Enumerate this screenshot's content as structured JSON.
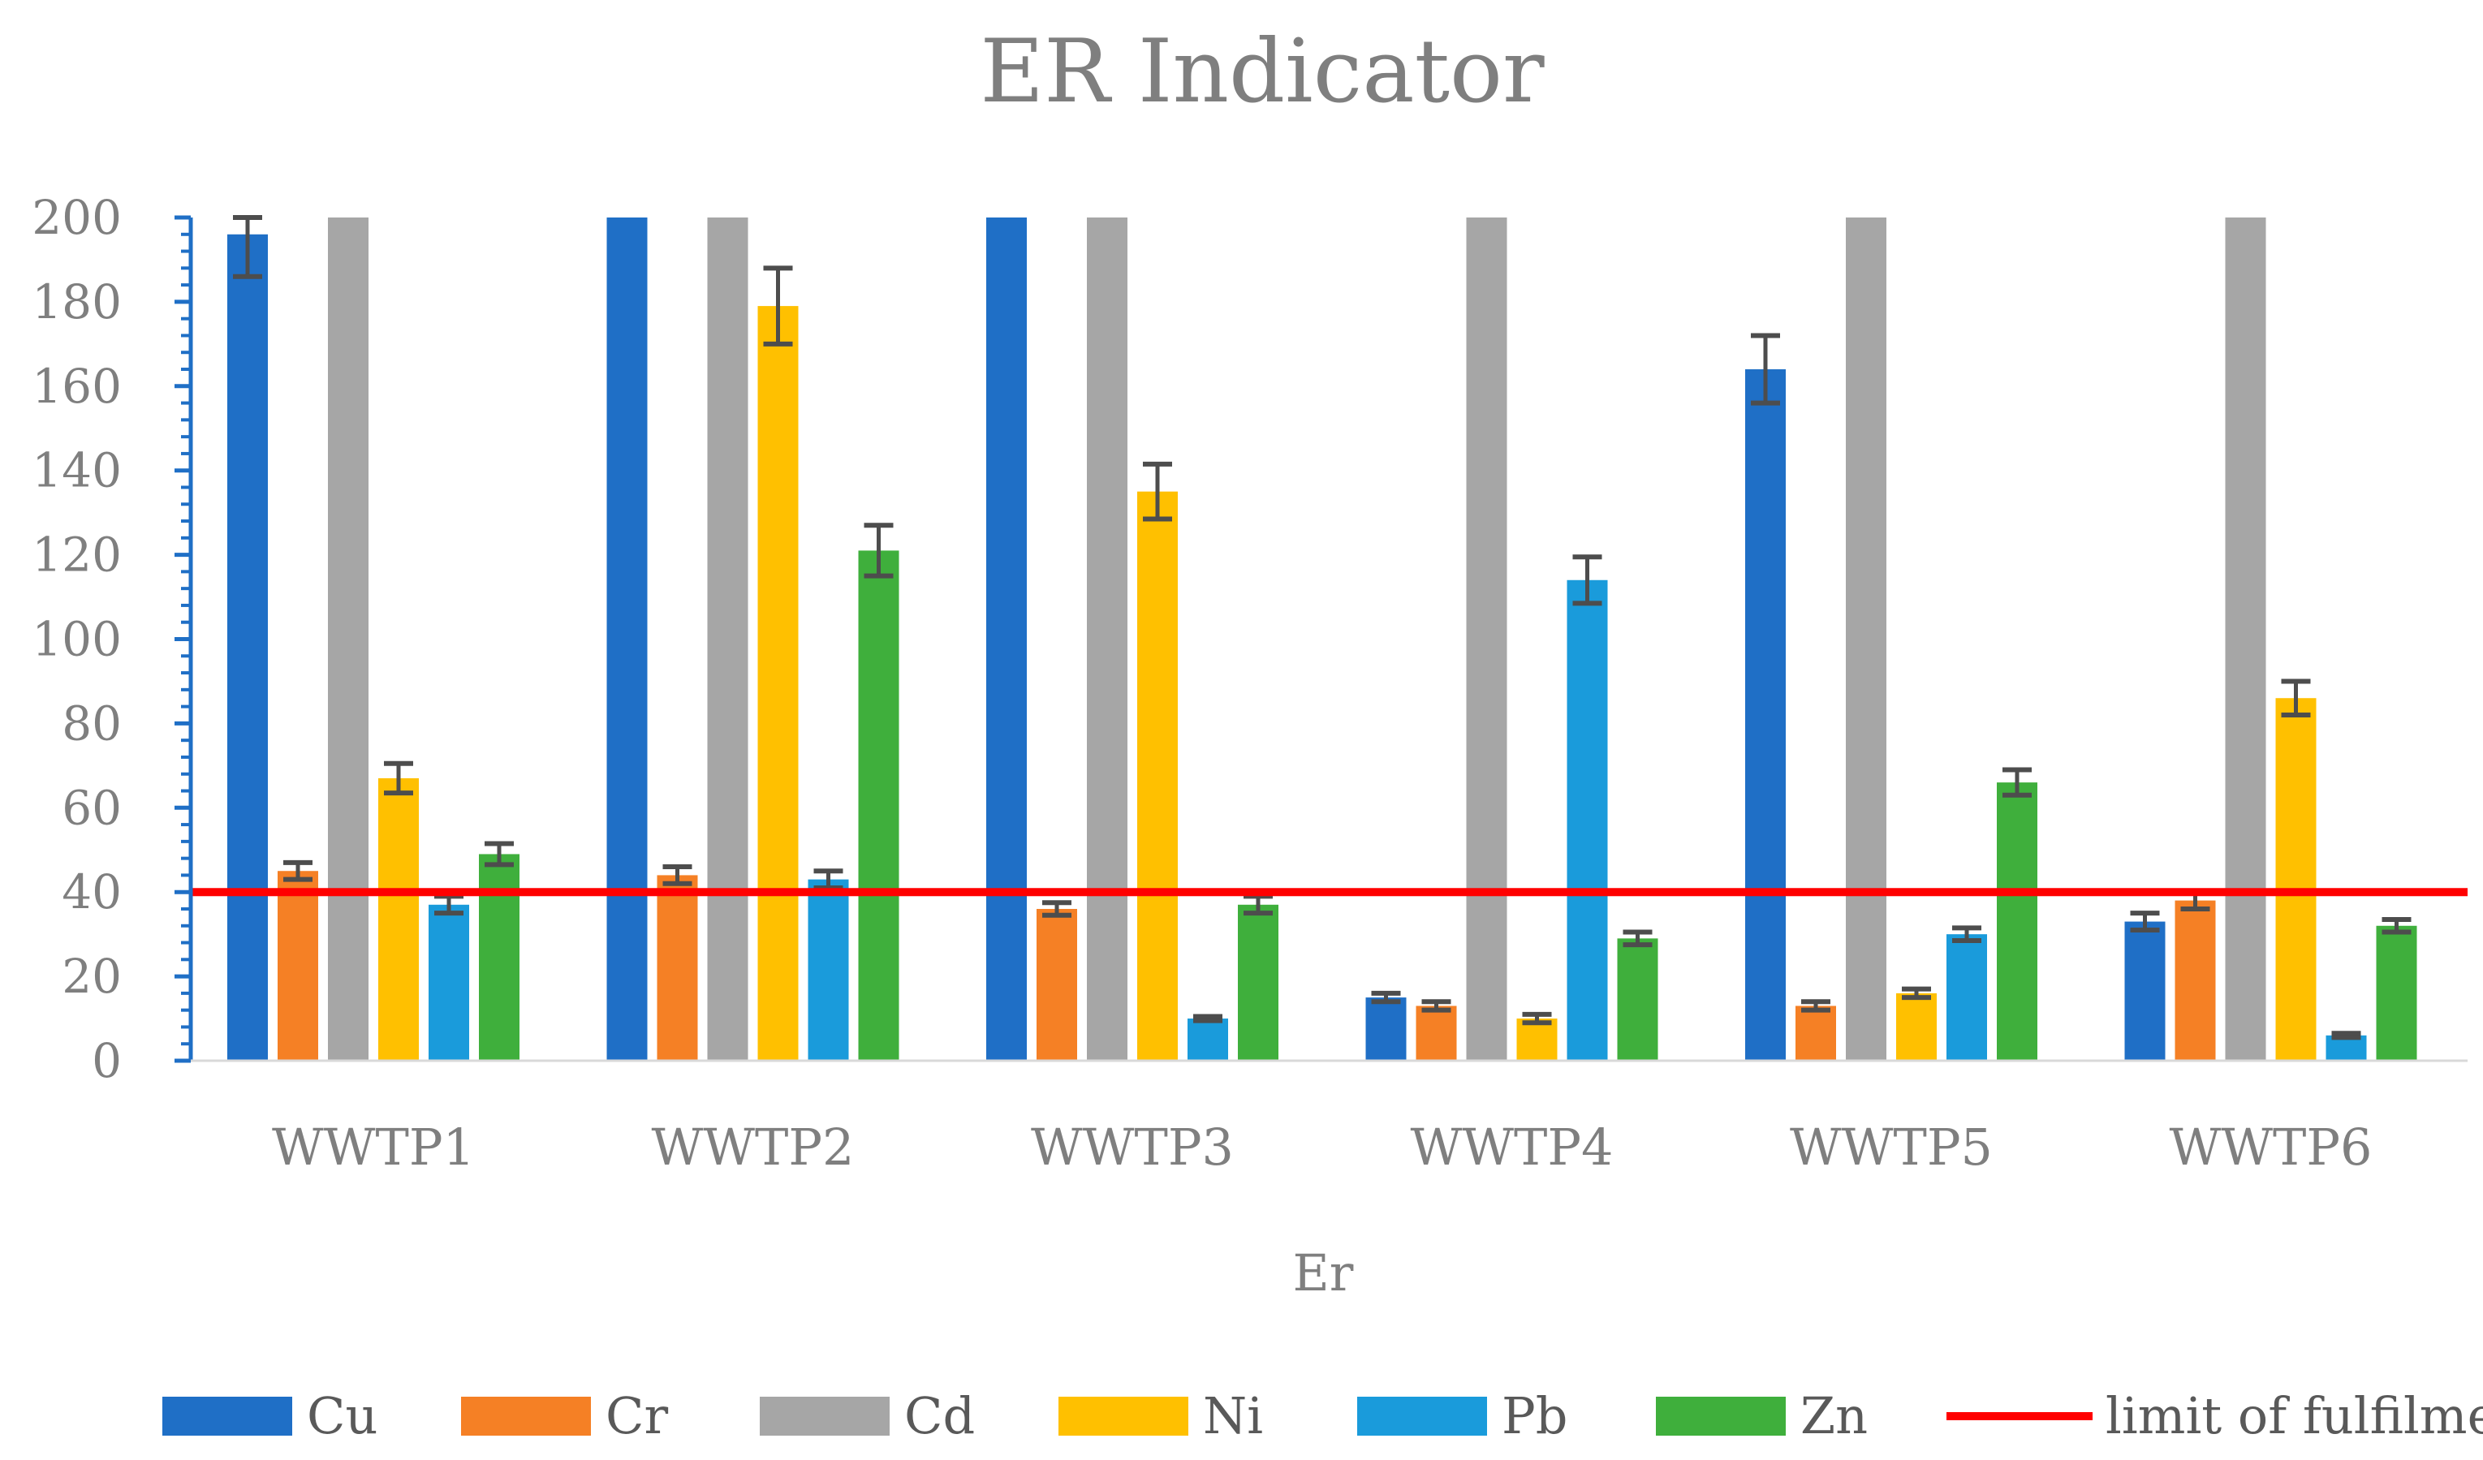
{
  "chart_data": {
    "type": "bar",
    "title": "ER Indicator",
    "xlabel": "Er",
    "ylabel": "",
    "ylim": [
      0,
      200
    ],
    "yticks": [
      0,
      20,
      40,
      60,
      80,
      100,
      120,
      140,
      160,
      180,
      200
    ],
    "grid": false,
    "legend_position": "bottom",
    "categories": [
      "WWTP1",
      "WWTP2",
      "WWTP3",
      "WWTP4",
      "WWTP5",
      "WWTP6"
    ],
    "series": [
      {
        "name": "Cu",
        "color": "#1f6fc6",
        "values": [
          196,
          200,
          200,
          15,
          164,
          33
        ],
        "errors": [
          10,
          null,
          null,
          1,
          8,
          2
        ]
      },
      {
        "name": "Cr",
        "color": "#f58025",
        "values": [
          45,
          44,
          36,
          13,
          13,
          38
        ],
        "errors": [
          2,
          2,
          1.5,
          1,
          1,
          2
        ]
      },
      {
        "name": "Cd",
        "color": "#a6a6a6",
        "values": [
          200,
          200,
          200,
          200,
          200,
          200
        ],
        "errors": [
          null,
          null,
          null,
          null,
          null,
          null
        ]
      },
      {
        "name": "Ni",
        "color": "#ffc000",
        "values": [
          67,
          179,
          135,
          10,
          16,
          86
        ],
        "errors": [
          3.5,
          9,
          6.5,
          1,
          1,
          4
        ]
      },
      {
        "name": "Pb",
        "color": "#1a9bdb",
        "values": [
          37,
          43,
          10,
          114,
          30,
          6
        ],
        "errors": [
          2,
          2,
          0.5,
          5.5,
          1.5,
          0.5
        ]
      },
      {
        "name": "Zn",
        "color": "#3faf3c",
        "values": [
          49,
          121,
          37,
          29,
          66,
          32
        ],
        "errors": [
          2.5,
          6,
          2,
          1.5,
          3,
          1.5
        ]
      }
    ],
    "reference_line": {
      "name": "limit of fulfilment",
      "value": 40,
      "color": "#ff0000"
    },
    "error_bar_color": "#4d4d4d",
    "axis_color": "#1f6fc6"
  }
}
